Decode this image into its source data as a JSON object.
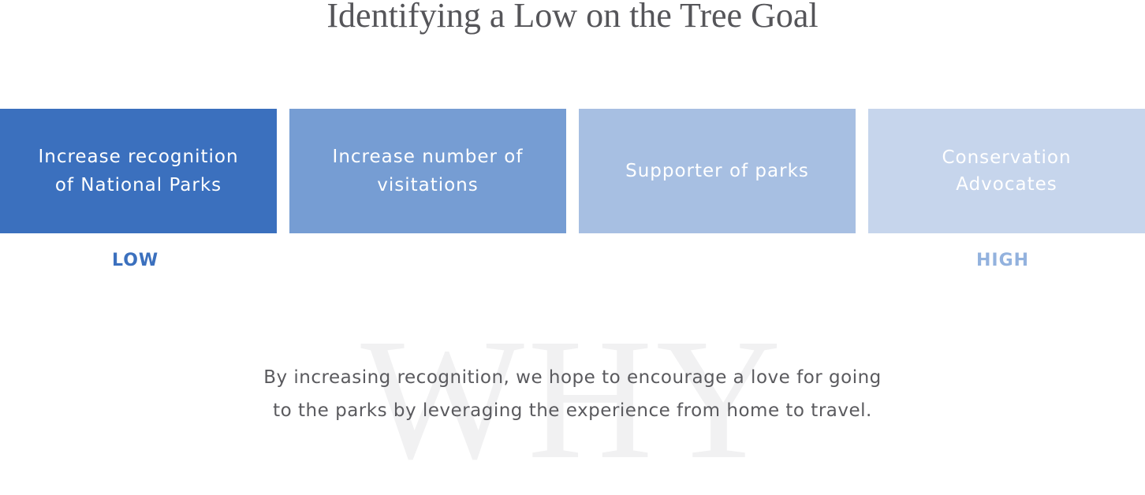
{
  "title": "Identifying a Low on the Tree Goal",
  "goals": [
    {
      "label": "Increase recognition\nof National Parks",
      "color": "#3b70be"
    },
    {
      "label": "Increase number of\nvisitations",
      "color": "#769dd3"
    },
    {
      "label": "Supporter of parks",
      "color": "#a7bfe2"
    },
    {
      "label": "Conservation\nAdvocates",
      "color": "#c6d5ec"
    }
  ],
  "scale": {
    "low": {
      "label": "LOW",
      "color": "#3b70be"
    },
    "high": {
      "label": "HIGH",
      "color": "#93b2de"
    }
  },
  "watermark": "WHY",
  "why": {
    "line1": "By increasing recognition, we hope to encourage a love for going",
    "line2": "to the parks by leveraging the experience from home to travel."
  }
}
